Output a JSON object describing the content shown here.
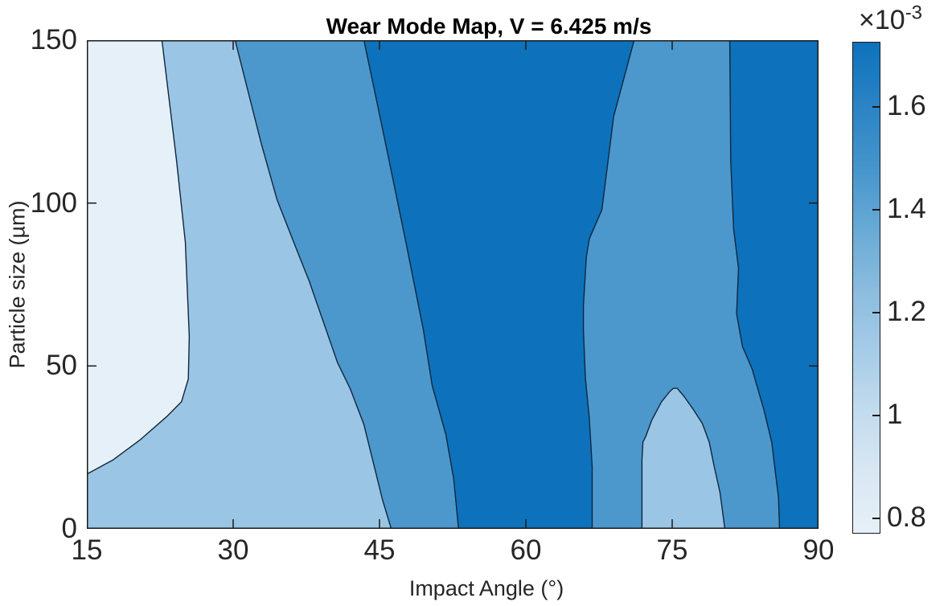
{
  "figure": {
    "title": "Wear Mode Map, V = 6.425 m/s",
    "x_axis_label": "Impact Angle (°)",
    "y_axis_label": "Particle size (µm)",
    "colorbar_exponent_base": "×10",
    "colorbar_exponent_power": "-3"
  },
  "chart_data": {
    "type": "filled-contour",
    "title": "Wear Mode Map, V = 6.425 m/s",
    "xlabel": "Impact Angle (°)",
    "ylabel": "Particle size (µm)",
    "xlim": [
      15,
      90
    ],
    "ylim": [
      0,
      150
    ],
    "grid": false,
    "x_ticks": [
      {
        "value": 15,
        "label": "15"
      },
      {
        "value": 30,
        "label": "30"
      },
      {
        "value": 45,
        "label": "45"
      },
      {
        "value": 60,
        "label": "60"
      },
      {
        "value": 75,
        "label": "75"
      },
      {
        "value": 90,
        "label": "90"
      }
    ],
    "y_ticks": [
      {
        "value": 0,
        "label": "0"
      },
      {
        "value": 50,
        "label": "50"
      },
      {
        "value": 100,
        "label": "100"
      },
      {
        "value": 150,
        "label": "150"
      }
    ],
    "colorbar": {
      "orientation": "vertical-right",
      "scale_exponent": -3,
      "range": [
        0.772,
        1.725
      ],
      "ticks": [
        {
          "value": 1.6,
          "label": "1.6"
        },
        {
          "value": 1.4,
          "label": "1.4"
        },
        {
          "value": 1.2,
          "label": "1.2"
        },
        {
          "value": 1.0,
          "label": "1"
        },
        {
          "value": 0.8,
          "label": "0.8"
        }
      ]
    },
    "value_description": "Wear rate (×10⁻³) increases with impact angle from a minimum at 15–25°, peaks near 50–67°, dips near 72–86° (light low-wear pocket below ~43 µm around 72–80°), then rises again toward 90°.",
    "fill_bands": [
      {
        "color_key": "pale",
        "approx_value_x1e3": "< 0.95"
      },
      {
        "color_key": "light",
        "approx_value_x1e3": "0.95 – 1.2"
      },
      {
        "color_key": "medium",
        "approx_value_x1e3": "1.2 – 1.45"
      },
      {
        "color_key": "dark",
        "approx_value_x1e3": "> 1.45"
      }
    ],
    "colors": {
      "pale": "#E6F0F8",
      "light": "#9BC5E4",
      "medium": "#4C98CD",
      "dark": "#0D72BB",
      "contour_line": "#10263C",
      "axis": "#1A1A1A",
      "text": "#262626",
      "background": "#FFFFFF",
      "colorbar_gradient_top_to_bottom": [
        "#0D72BB",
        "#2A83C4",
        "#4494CB",
        "#66A9D5",
        "#8ABBDE",
        "#A5CBE7",
        "#C2DBEE",
        "#D8E7F3",
        "#E6F0F8"
      ]
    },
    "contour_lines": [
      {
        "name": "c1-pale-light",
        "points": [
          [
            22.7,
            150
          ],
          [
            24.2,
            113
          ],
          [
            25.1,
            88
          ],
          [
            25.5,
            59
          ],
          [
            25.4,
            46
          ],
          [
            24.7,
            39
          ],
          [
            23.2,
            34.5
          ],
          [
            20.5,
            27.4
          ],
          [
            17.7,
            21.2
          ],
          [
            15,
            16.8
          ]
        ]
      },
      {
        "name": "c2-light-medium-left",
        "points": [
          [
            30.2,
            150
          ],
          [
            32.9,
            118
          ],
          [
            34.5,
            101
          ],
          [
            36.6,
            85
          ],
          [
            37.8,
            76
          ],
          [
            40.7,
            51
          ],
          [
            42,
            43
          ],
          [
            43.4,
            32
          ],
          [
            45.3,
            9
          ],
          [
            46.2,
            0
          ]
        ]
      },
      {
        "name": "c3-medium-dark-left",
        "points": [
          [
            43.4,
            150
          ],
          [
            45.5,
            120
          ],
          [
            47.7,
            88
          ],
          [
            49.5,
            61
          ],
          [
            50.4,
            44
          ],
          [
            51.8,
            29
          ],
          [
            52.6,
            15.5
          ],
          [
            53.1,
            0
          ]
        ]
      },
      {
        "name": "c3-dark-medium-mid",
        "points": [
          [
            71.1,
            150
          ],
          [
            69,
            126.6
          ],
          [
            67.8,
            98
          ],
          [
            66.5,
            89
          ],
          [
            66.2,
            83.4
          ],
          [
            65.9,
            68.6
          ],
          [
            65.9,
            61
          ],
          [
            66.1,
            46.4
          ],
          [
            66.5,
            34
          ],
          [
            66.8,
            19
          ],
          [
            66.8,
            0
          ]
        ]
      },
      {
        "name": "c3-medium-dark-right",
        "points": [
          [
            80.9,
            150
          ],
          [
            81,
            113
          ],
          [
            81.3,
            92
          ],
          [
            81.8,
            80
          ],
          [
            81.6,
            66
          ],
          [
            82.2,
            56
          ],
          [
            83.2,
            49
          ],
          [
            84.4,
            36.5
          ],
          [
            85.2,
            26.6
          ],
          [
            85.9,
            9.4
          ],
          [
            86,
            0
          ]
        ]
      },
      {
        "name": "c2-low-wear-pocket",
        "points": [
          [
            71.9,
            0
          ],
          [
            71.9,
            12.6
          ],
          [
            71.9,
            21
          ],
          [
            72,
            26.6
          ],
          [
            72.3,
            28.4
          ],
          [
            72.9,
            33.3
          ],
          [
            73.9,
            39
          ],
          [
            74.7,
            42
          ],
          [
            75.1,
            43.1
          ],
          [
            75.5,
            43.2
          ],
          [
            76.2,
            40.7
          ],
          [
            77.2,
            36.5
          ],
          [
            78.1,
            32.3
          ],
          [
            78.8,
            26.6
          ],
          [
            79.3,
            19.2
          ],
          [
            79.9,
            11.1
          ],
          [
            80.4,
            0
          ]
        ]
      }
    ],
    "regions": [
      {
        "name": "base-light-band",
        "color_key": "light",
        "points": [
          [
            15,
            0
          ],
          [
            90,
            0
          ],
          [
            90,
            150
          ],
          [
            15,
            150
          ]
        ]
      },
      {
        "name": "pale-band-low-angle",
        "color_key": "pale",
        "points": [
          [
            15,
            150
          ],
          [
            22.7,
            150
          ],
          [
            24.2,
            113
          ],
          [
            25.1,
            88
          ],
          [
            25.5,
            59
          ],
          [
            25.4,
            46
          ],
          [
            24.7,
            39
          ],
          [
            23.2,
            34.5
          ],
          [
            20.5,
            27.4
          ],
          [
            17.7,
            21.2
          ],
          [
            15,
            16.8
          ]
        ]
      },
      {
        "name": "medium-band-left",
        "color_key": "medium",
        "points": [
          [
            30.2,
            150
          ],
          [
            32.9,
            118
          ],
          [
            34.5,
            101
          ],
          [
            36.6,
            85
          ],
          [
            37.8,
            76
          ],
          [
            40.7,
            51
          ],
          [
            42,
            43
          ],
          [
            43.4,
            32
          ],
          [
            45.3,
            9
          ],
          [
            46.2,
            0
          ],
          [
            53.1,
            0
          ],
          [
            52.6,
            15.5
          ],
          [
            51.8,
            29
          ],
          [
            50.4,
            44
          ],
          [
            49.5,
            61
          ],
          [
            47.7,
            88
          ],
          [
            45.5,
            120
          ],
          [
            43.4,
            150
          ]
        ]
      },
      {
        "name": "dark-band-center-peak",
        "color_key": "dark",
        "points": [
          [
            43.4,
            150
          ],
          [
            45.5,
            120
          ],
          [
            47.7,
            88
          ],
          [
            49.5,
            61
          ],
          [
            50.4,
            44
          ],
          [
            51.8,
            29
          ],
          [
            52.6,
            15.5
          ],
          [
            53.1,
            0
          ],
          [
            66.8,
            0
          ],
          [
            66.8,
            19
          ],
          [
            66.5,
            34
          ],
          [
            66.1,
            46.4
          ],
          [
            65.9,
            61
          ],
          [
            65.9,
            68.6
          ],
          [
            66.2,
            83.4
          ],
          [
            66.5,
            89
          ],
          [
            67.8,
            98
          ],
          [
            69,
            126.6
          ],
          [
            71.1,
            150
          ]
        ]
      },
      {
        "name": "medium-band-right",
        "color_key": "medium",
        "points": [
          [
            71.1,
            150
          ],
          [
            69,
            126.6
          ],
          [
            67.8,
            98
          ],
          [
            66.5,
            89
          ],
          [
            66.2,
            83.4
          ],
          [
            65.9,
            68.6
          ],
          [
            65.9,
            61
          ],
          [
            66.1,
            46.4
          ],
          [
            66.5,
            34
          ],
          [
            66.8,
            19
          ],
          [
            66.8,
            0
          ],
          [
            86,
            0
          ],
          [
            85.9,
            9.4
          ],
          [
            85.2,
            26.6
          ],
          [
            84.4,
            36.5
          ],
          [
            83.2,
            49
          ],
          [
            82.2,
            56
          ],
          [
            81.6,
            66
          ],
          [
            81.8,
            80
          ],
          [
            81.3,
            92
          ],
          [
            81,
            113
          ],
          [
            80.9,
            150
          ]
        ]
      },
      {
        "name": "dark-band-right-edge",
        "color_key": "dark",
        "points": [
          [
            80.9,
            150
          ],
          [
            81,
            113
          ],
          [
            81.3,
            92
          ],
          [
            81.8,
            80
          ],
          [
            81.6,
            66
          ],
          [
            82.2,
            56
          ],
          [
            83.2,
            49
          ],
          [
            84.4,
            36.5
          ],
          [
            85.2,
            26.6
          ],
          [
            85.9,
            9.4
          ],
          [
            86,
            0
          ],
          [
            90,
            0
          ],
          [
            90,
            150
          ]
        ]
      },
      {
        "name": "light-pocket-dome",
        "color_key": "light",
        "points": [
          [
            71.9,
            0
          ],
          [
            71.9,
            12.6
          ],
          [
            71.9,
            21
          ],
          [
            72,
            26.6
          ],
          [
            72.3,
            28.4
          ],
          [
            72.9,
            33.3
          ],
          [
            73.9,
            39
          ],
          [
            74.7,
            42
          ],
          [
            75.1,
            43.1
          ],
          [
            75.5,
            43.2
          ],
          [
            76.2,
            40.7
          ],
          [
            77.2,
            36.5
          ],
          [
            78.1,
            32.3
          ],
          [
            78.8,
            26.6
          ],
          [
            79.3,
            19.2
          ],
          [
            79.9,
            11.1
          ],
          [
            80.4,
            0
          ]
        ]
      }
    ]
  }
}
